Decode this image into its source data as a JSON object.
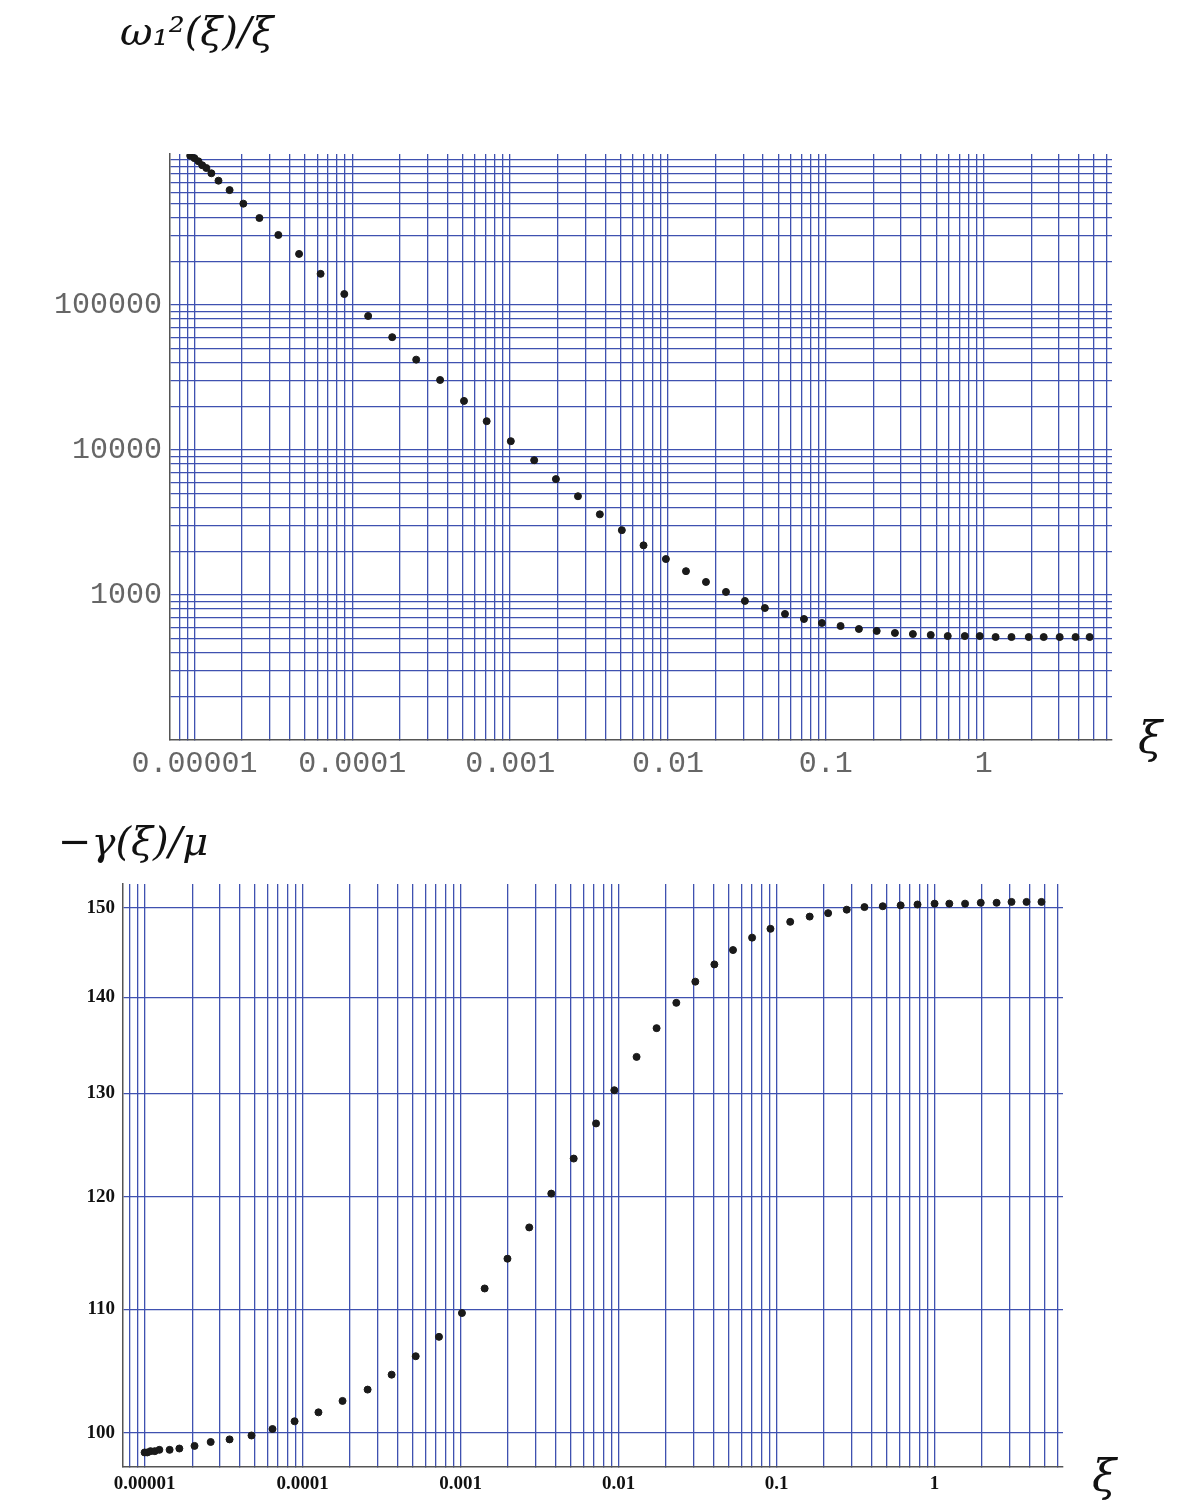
{
  "chart_data": [
    {
      "type": "scatter",
      "ylabel": "ω₁²(ξ)/ξ",
      "xlabel": "ξ",
      "log": "xy",
      "grid": true,
      "marker": "circle",
      "color": "#1a1a1a",
      "x": [
        9.4e-06,
        1e-05,
        1.06e-05,
        1.12e-05,
        1.19e-05,
        1.28e-05,
        1.42e-05,
        1.67e-05,
        2.04e-05,
        2.58e-05,
        3.4e-05,
        4.6e-05,
        6.3e-05,
        8.9e-05,
        0.000126,
        0.000179,
        0.000254,
        0.00036,
        0.00051,
        0.00071,
        0.00101,
        0.00142,
        0.00195,
        0.00269,
        0.0037,
        0.0051,
        0.007,
        0.0097,
        0.013,
        0.0174,
        0.0233,
        0.0307,
        0.0411,
        0.0551,
        0.0727,
        0.0944,
        0.124,
        0.162,
        0.21,
        0.274,
        0.356,
        0.462,
        0.592,
        0.759,
        0.944,
        1.19,
        1.5,
        1.93,
        2.4,
        3.03,
        3.82,
        4.69
      ],
      "values": [
        1070000,
        1030000,
        980000,
        920000,
        880000,
        810000,
        720000,
        620000,
        500000,
        398000,
        304000,
        225000,
        164000,
        119000,
        84000,
        60000,
        42000,
        30400,
        21800,
        15800,
        11500,
        8500,
        6300,
        4800,
        3600,
        2800,
        2200,
        1770,
        1460,
        1230,
        1050,
        910,
        813,
        740,
        683,
        641,
        611,
        583,
        565,
        547,
        538,
        530,
        521,
        521,
        521,
        513,
        513,
        513,
        513,
        513,
        513,
        513
      ],
      "xlim": [
        7e-06,
        6.5
      ],
      "ylim": [
        100,
        1100000
      ],
      "xticks": [
        {
          "value": 8e-06,
          "label": null
        },
        {
          "value": 9e-06,
          "label": null
        },
        {
          "value": 1e-05,
          "label": "0.00001"
        },
        {
          "value": 2e-05,
          "label": null
        },
        {
          "value": 3e-05,
          "label": null
        },
        {
          "value": 4e-05,
          "label": null
        },
        {
          "value": 5e-05,
          "label": null
        },
        {
          "value": 6e-05,
          "label": null
        },
        {
          "value": 7e-05,
          "label": null
        },
        {
          "value": 8e-05,
          "label": null
        },
        {
          "value": 9e-05,
          "label": null
        },
        0.0001,
        {
          "value": 0.0002,
          "label": null
        },
        {
          "value": 0.0003,
          "label": null
        },
        {
          "value": 0.0004,
          "label": null
        },
        {
          "value": 0.0005,
          "label": null
        },
        {
          "value": 0.0006,
          "label": null
        },
        {
          "value": 0.0007,
          "label": null
        },
        {
          "value": 0.0008,
          "label": null
        },
        {
          "value": 0.0009,
          "label": null
        },
        0.001,
        {
          "value": 0.002,
          "label": null
        },
        {
          "value": 0.003,
          "label": null
        },
        {
          "value": 0.004,
          "label": null
        },
        {
          "value": 0.005,
          "label": null
        },
        {
          "value": 0.006,
          "label": null
        },
        {
          "value": 0.007,
          "label": null
        },
        {
          "value": 0.008,
          "label": null
        },
        {
          "value": 0.009,
          "label": null
        },
        0.01,
        {
          "value": 0.02,
          "label": null
        },
        {
          "value": 0.03,
          "label": null
        },
        {
          "value": 0.04,
          "label": null
        },
        {
          "value": 0.05,
          "label": null
        },
        {
          "value": 0.06,
          "label": null
        },
        {
          "value": 0.07,
          "label": null
        },
        {
          "value": 0.08,
          "label": null
        },
        {
          "value": 0.09,
          "label": null
        },
        0.1,
        {
          "value": 0.2,
          "label": null
        },
        {
          "value": 0.3,
          "label": null
        },
        {
          "value": 0.4,
          "label": null
        },
        {
          "value": 0.5,
          "label": null
        },
        {
          "value": 0.6,
          "label": null
        },
        {
          "value": 0.7,
          "label": null
        },
        {
          "value": 0.8,
          "label": null
        },
        {
          "value": 0.9,
          "label": null
        },
        1,
        {
          "value": 2,
          "label": null
        },
        {
          "value": 3,
          "label": null
        },
        {
          "value": 4,
          "label": null
        },
        {
          "value": 5,
          "label": null
        },
        {
          "value": 6,
          "label": null
        }
      ],
      "yticks": [
        {
          "value": 200,
          "label": null
        },
        {
          "value": 300,
          "label": null
        },
        {
          "value": 400,
          "label": null
        },
        {
          "value": 500,
          "label": null
        },
        {
          "value": 600,
          "label": null
        },
        {
          "value": 700,
          "label": null
        },
        {
          "value": 800,
          "label": null
        },
        {
          "value": 900,
          "label": null
        },
        1000,
        {
          "value": 2000,
          "label": null
        },
        {
          "value": 3000,
          "label": null
        },
        {
          "value": 4000,
          "label": null
        },
        {
          "value": 5000,
          "label": null
        },
        {
          "value": 6000,
          "label": null
        },
        {
          "value": 7000,
          "label": null
        },
        {
          "value": 8000,
          "label": null
        },
        {
          "value": 9000,
          "label": null
        },
        10000,
        {
          "value": 20000,
          "label": null
        },
        {
          "value": 30000,
          "label": null
        },
        {
          "value": 40000,
          "label": null
        },
        {
          "value": 50000,
          "label": null
        },
        {
          "value": 60000,
          "label": null
        },
        {
          "value": 70000,
          "label": null
        },
        {
          "value": 80000,
          "label": null
        },
        {
          "value": 90000,
          "label": null
        },
        100000,
        {
          "value": 200000,
          "label": null
        },
        {
          "value": 300000,
          "label": null
        },
        {
          "value": 400000,
          "label": null
        },
        {
          "value": 500000,
          "label": null
        },
        {
          "value": 600000,
          "label": null
        },
        {
          "value": 700000,
          "label": null
        },
        {
          "value": 800000,
          "label": null
        },
        {
          "value": 900000,
          "label": null
        },
        {
          "value": 1000000,
          "label": null
        }
      ]
    },
    {
      "type": "scatter",
      "ylabel": "−γ(ξ)/μ",
      "xlabel": "ξ",
      "log": "xy",
      "grid": true,
      "marker": "circle",
      "color": "#1a1a1a",
      "x": [
        1e-05,
        1.04e-05,
        1.09e-05,
        1.16e-05,
        1.24e-05,
        1.44e-05,
        1.66e-05,
        2.07e-05,
        2.62e-05,
        3.45e-05,
        4.75e-05,
        6.45e-05,
        8.9e-05,
        0.000126,
        0.000179,
        0.000258,
        0.000366,
        0.00052,
        0.00073,
        0.00102,
        0.00142,
        0.00198,
        0.00272,
        0.00375,
        0.0052,
        0.0072,
        0.0094,
        0.013,
        0.0174,
        0.0232,
        0.0306,
        0.0404,
        0.053,
        0.07,
        0.0915,
        0.122,
        0.162,
        0.212,
        0.278,
        0.36,
        0.47,
        0.61,
        0.78,
        1.0,
        1.24,
        1.56,
        1.96,
        2.47,
        3.07,
        3.82,
        4.75
      ],
      "values": [
        98.5,
        98.5,
        98.6,
        98.6,
        98.7,
        98.7,
        98.8,
        99.0,
        99.3,
        99.5,
        99.8,
        100.3,
        100.9,
        101.6,
        102.5,
        103.4,
        104.6,
        106.1,
        107.7,
        109.7,
        111.8,
        114.4,
        117.2,
        120.3,
        123.6,
        127.0,
        130.3,
        133.7,
        136.7,
        139.4,
        141.7,
        143.6,
        145.2,
        146.6,
        147.6,
        148.4,
        149.0,
        149.4,
        149.8,
        150.1,
        150.2,
        150.3,
        150.4,
        150.5,
        150.5,
        150.5,
        150.6,
        150.6,
        150.7,
        150.7,
        150.7
      ],
      "xlim": [
        7.3e-06,
        6.5
      ],
      "ylim": [
        97.4,
        152.8
      ],
      "xticks": [
        {
          "value": 8e-06,
          "label": null
        },
        {
          "value": 9e-06,
          "label": null
        },
        {
          "value": 1e-05,
          "label": "0.00001"
        },
        {
          "value": 2e-05,
          "label": null
        },
        {
          "value": 3e-05,
          "label": null
        },
        {
          "value": 4e-05,
          "label": null
        },
        {
          "value": 5e-05,
          "label": null
        },
        {
          "value": 6e-05,
          "label": null
        },
        {
          "value": 7e-05,
          "label": null
        },
        {
          "value": 8e-05,
          "label": null
        },
        {
          "value": 9e-05,
          "label": null
        },
        0.0001,
        {
          "value": 0.0002,
          "label": null
        },
        {
          "value": 0.0003,
          "label": null
        },
        {
          "value": 0.0004,
          "label": null
        },
        {
          "value": 0.0005,
          "label": null
        },
        {
          "value": 0.0006,
          "label": null
        },
        {
          "value": 0.0007,
          "label": null
        },
        {
          "value": 0.0008,
          "label": null
        },
        {
          "value": 0.0009,
          "label": null
        },
        0.001,
        {
          "value": 0.002,
          "label": null
        },
        {
          "value": 0.003,
          "label": null
        },
        {
          "value": 0.004,
          "label": null
        },
        {
          "value": 0.005,
          "label": null
        },
        {
          "value": 0.006,
          "label": null
        },
        {
          "value": 0.007,
          "label": null
        },
        {
          "value": 0.008,
          "label": null
        },
        {
          "value": 0.009,
          "label": null
        },
        0.01,
        {
          "value": 0.02,
          "label": null
        },
        {
          "value": 0.03,
          "label": null
        },
        {
          "value": 0.04,
          "label": null
        },
        {
          "value": 0.05,
          "label": null
        },
        {
          "value": 0.06,
          "label": null
        },
        {
          "value": 0.07,
          "label": null
        },
        {
          "value": 0.08,
          "label": null
        },
        {
          "value": 0.09,
          "label": null
        },
        0.1,
        {
          "value": 0.2,
          "label": null
        },
        {
          "value": 0.3,
          "label": null
        },
        {
          "value": 0.4,
          "label": null
        },
        {
          "value": 0.5,
          "label": null
        },
        {
          "value": 0.6,
          "label": null
        },
        {
          "value": 0.7,
          "label": null
        },
        {
          "value": 0.8,
          "label": null
        },
        {
          "value": 0.9,
          "label": null
        },
        1,
        {
          "value": 2,
          "label": null
        },
        {
          "value": 3,
          "label": null
        },
        {
          "value": 4,
          "label": null
        },
        {
          "value": 5,
          "label": null
        },
        {
          "value": 6,
          "label": null
        }
      ],
      "yticks": [
        100,
        110,
        120,
        130,
        140,
        150
      ]
    }
  ]
}
